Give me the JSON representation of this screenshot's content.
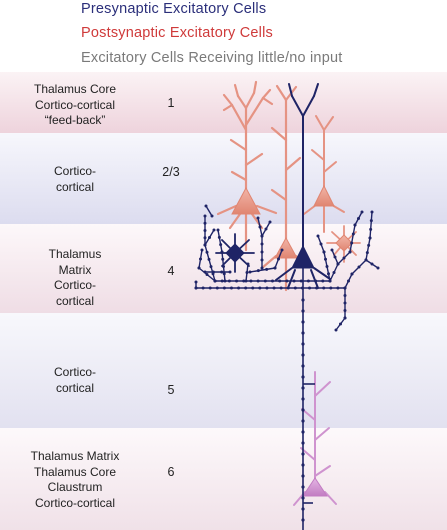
{
  "legend": [
    {
      "label": "Presynaptic Excitatory Cells",
      "color": "#2b2f7a"
    },
    {
      "label": "Postsynaptic Excitatory Cells",
      "color": "#cf3a3a"
    },
    {
      "label": "Excitatory Cells Receiving little/no input",
      "color": "#7a7a7a"
    }
  ],
  "layers": [
    {
      "id": "1",
      "number": "1",
      "label": "Thalamus Core\nCortico-cortical\n“feed-back”"
    },
    {
      "id": "2-3",
      "number": "2/3",
      "label": "Cortico-\ncortical"
    },
    {
      "id": "4",
      "number": "4",
      "label": "Thalamus\nMatrix\nCortico-\ncortical"
    },
    {
      "id": "5",
      "number": "5",
      "label": "Cortico-\ncortical"
    },
    {
      "id": "6",
      "number": "6",
      "label": "Thalamus Matrix\nThalamus Core\nClaustrum\nCortico-cortical"
    }
  ],
  "colors": {
    "presynaptic": "#1f2466",
    "postsynaptic": "#e59383",
    "little_input": "#cf93cf"
  }
}
